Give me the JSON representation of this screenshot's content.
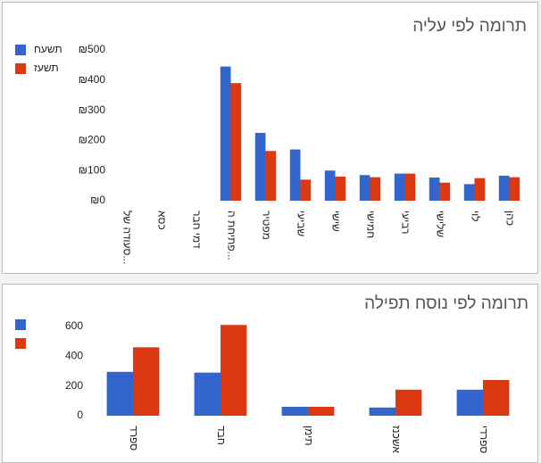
{
  "chart_data": [
    {
      "type": "bar",
      "title": "תרומה לפי עליה",
      "categories": [
        "סעודה של...",
        "כסא",
        "דמי חבר",
        "פתיחת ה...",
        "מפטיר",
        "שביעי",
        "שישי",
        "חמישי",
        "רביעי",
        "שלישי",
        "לוי",
        "כהן"
      ],
      "series": [
        {
          "name": "תשעח",
          "color": "#3366cc",
          "values": [
            0,
            0,
            0,
            445,
            225,
            170,
            100,
            85,
            90,
            77,
            55,
            83
          ]
        },
        {
          "name": "תשעז",
          "color": "#dc3912",
          "values": [
            0,
            0,
            0,
            390,
            165,
            70,
            80,
            78,
            90,
            60,
            75,
            78
          ]
        }
      ],
      "ylim": [
        0,
        500
      ],
      "yticks": [
        {
          "value": 0,
          "label": "₪0"
        },
        {
          "value": 100,
          "label": "₪100"
        },
        {
          "value": 200,
          "label": "₪200"
        },
        {
          "value": 300,
          "label": "₪300"
        },
        {
          "value": 400,
          "label": "₪400"
        },
        {
          "value": 500,
          "label": "₪500"
        }
      ],
      "grid": false,
      "legend": "left"
    },
    {
      "type": "bar",
      "title": "תרומה לפי נוסח תפילה",
      "categories": [
        "ספרד",
        "חבד",
        "תימן",
        "אשכנז",
        "ספרדי"
      ],
      "series": [
        {
          "color": "#3366cc",
          "values": [
            295,
            290,
            60,
            55,
            175
          ]
        },
        {
          "color": "#dc3912",
          "values": [
            460,
            610,
            60,
            175,
            240
          ]
        }
      ],
      "ylim": [
        0,
        700
      ],
      "yticks": [
        0,
        200,
        400,
        600
      ],
      "grid": false,
      "legend": "left"
    }
  ]
}
